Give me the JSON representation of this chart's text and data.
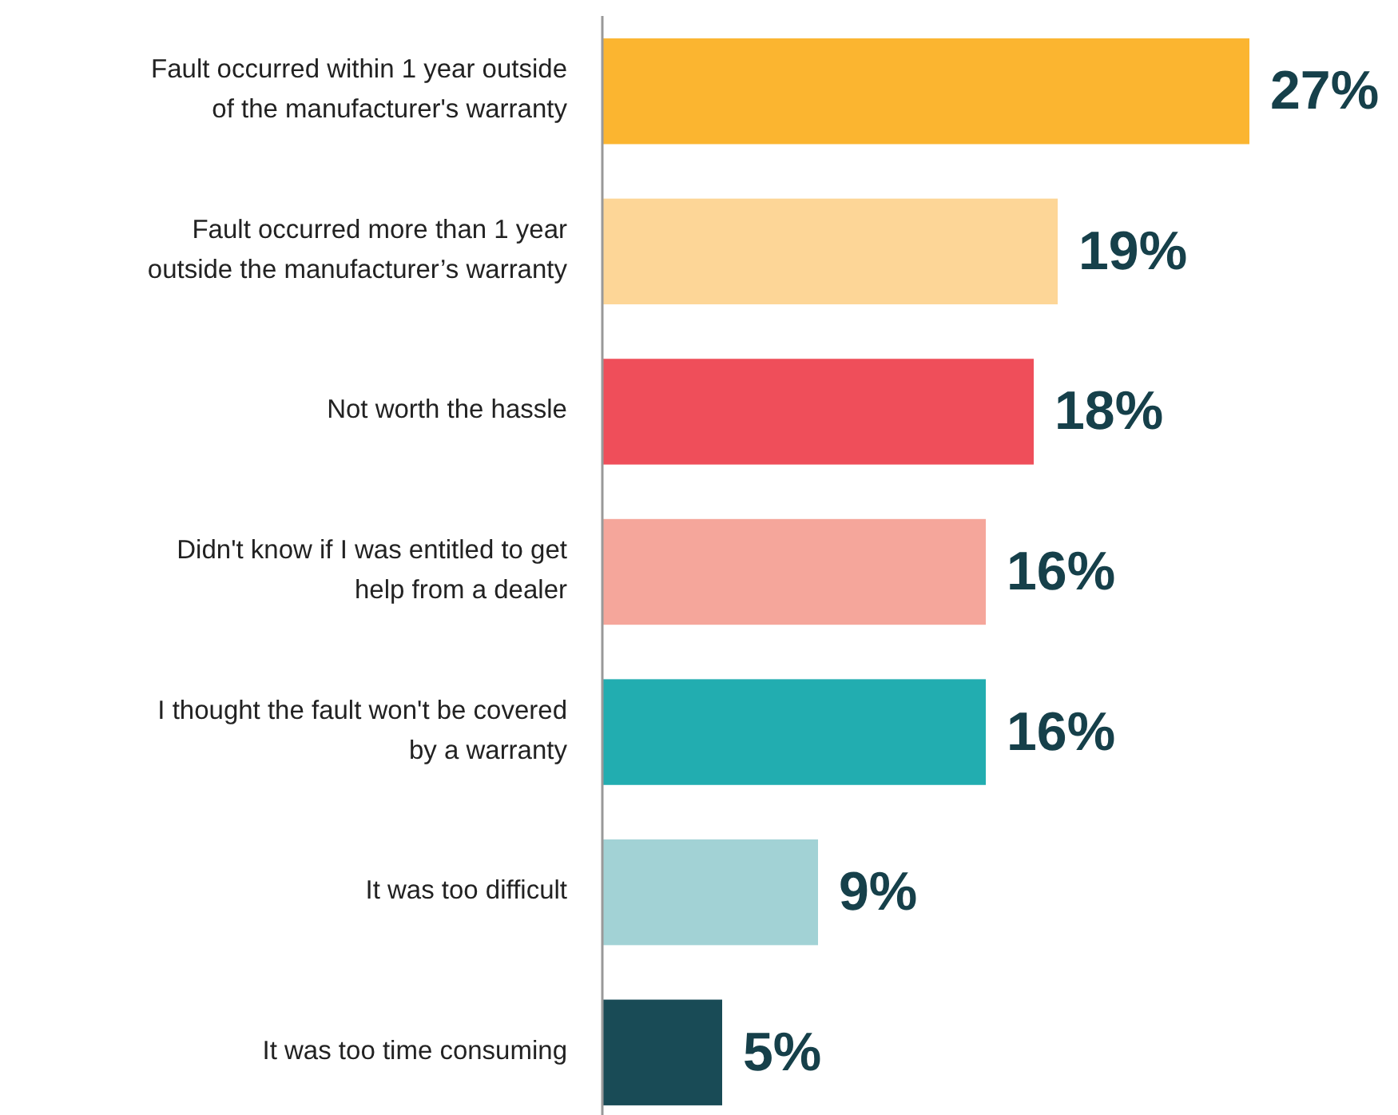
{
  "chart_data": {
    "type": "bar",
    "orientation": "horizontal",
    "categories": [
      "Fault occurred within 1 year outside of the manufacturer's warranty",
      "Fault occurred more than 1 year outside the manufacturer’s warranty",
      "Not worth the hassle",
      "Didn't know if I was entitled to get help from a dealer",
      "I thought the fault won't be covered by a warranty",
      "It was too difficult",
      "It was too time consuming"
    ],
    "values": [
      27,
      19,
      18,
      16,
      16,
      9,
      5
    ],
    "colors": [
      "#fbb530",
      "#fdd697",
      "#ef4e5a",
      "#f5a69b",
      "#22adb0",
      "#a2d2d5",
      "#194b56"
    ],
    "value_labels": [
      "27%",
      "19%",
      "18%",
      "16%",
      "16%",
      "9%",
      "5%"
    ]
  }
}
